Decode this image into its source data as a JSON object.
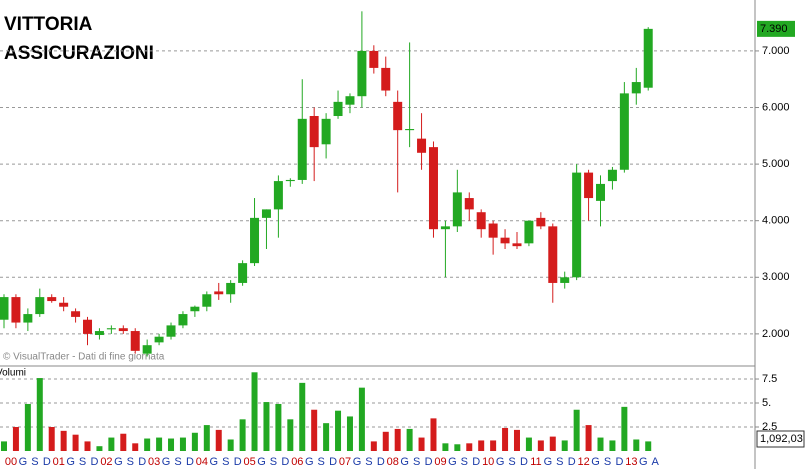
{
  "chart_data": [
    {
      "type": "candlestick",
      "title_lines": [
        "VITTORIA",
        "ASSICURAZIONI"
      ],
      "watermark": "© VisualTrader - Dati di fine giornata",
      "up_color": "#22a822",
      "down_color": "#d41c1c",
      "categories": [
        "00",
        "G",
        "S",
        "D",
        "01",
        "G",
        "S",
        "D",
        "02",
        "G",
        "S",
        "D",
        "03",
        "G",
        "S",
        "D",
        "04",
        "G",
        "S",
        "D",
        "05",
        "G",
        "S",
        "D",
        "06",
        "G",
        "S",
        "D",
        "07",
        "G",
        "S",
        "D",
        "08",
        "G",
        "S",
        "D",
        "09",
        "G",
        "S",
        "D",
        "10",
        "G",
        "S",
        "D",
        "11",
        "G",
        "S",
        "D",
        "12",
        "G",
        "S",
        "D",
        "13",
        "G",
        "A"
      ],
      "open": [
        2.25,
        2.65,
        2.2,
        2.35,
        2.65,
        2.55,
        2.4,
        2.25,
        1.98,
        2.08,
        2.1,
        2.05,
        1.65,
        1.85,
        1.95,
        2.15,
        2.4,
        2.48,
        2.75,
        2.7,
        2.9,
        3.25,
        4.05,
        4.2,
        4.7,
        4.72,
        5.85,
        5.35,
        5.85,
        6.05,
        6.2,
        7.0,
        6.7,
        6.1,
        5.6,
        5.45,
        5.3,
        3.85,
        3.9,
        4.4,
        4.15,
        3.95,
        3.7,
        3.6,
        3.6,
        4.05,
        3.9,
        2.9,
        3.0,
        4.85,
        4.35,
        4.7,
        4.9,
        6.25,
        6.35
      ],
      "high": [
        2.7,
        2.7,
        2.45,
        2.8,
        2.7,
        2.65,
        2.45,
        2.3,
        2.1,
        2.15,
        2.15,
        2.1,
        1.9,
        2.0,
        2.2,
        2.4,
        2.5,
        2.75,
        2.9,
        2.95,
        3.3,
        4.4,
        4.2,
        4.8,
        4.75,
        6.5,
        6.0,
        5.9,
        6.3,
        6.25,
        7.7,
        7.1,
        6.9,
        6.3,
        7.15,
        5.9,
        5.4,
        4.0,
        4.9,
        4.5,
        4.2,
        4.0,
        3.85,
        3.8,
        4.0,
        4.15,
        3.95,
        3.1,
        5.0,
        4.9,
        4.8,
        4.95,
        6.45,
        6.7,
        7.42
      ],
      "low": [
        2.1,
        2.1,
        2.05,
        2.3,
        2.55,
        2.4,
        2.2,
        1.8,
        1.9,
        2.0,
        2.0,
        1.65,
        1.6,
        1.8,
        1.9,
        2.1,
        2.3,
        2.4,
        2.6,
        2.55,
        2.85,
        3.2,
        3.5,
        3.7,
        4.6,
        4.65,
        4.7,
        5.1,
        5.8,
        5.9,
        6.0,
        6.6,
        6.2,
        4.5,
        5.3,
        4.9,
        3.7,
        3.0,
        3.8,
        4.0,
        3.7,
        3.4,
        3.5,
        3.5,
        3.55,
        3.85,
        2.55,
        2.8,
        2.95,
        4.0,
        3.9,
        4.55,
        4.85,
        6.05,
        6.3
      ],
      "close": [
        2.65,
        2.2,
        2.35,
        2.65,
        2.58,
        2.48,
        2.3,
        2.0,
        2.05,
        2.1,
        2.05,
        1.7,
        1.8,
        1.95,
        2.15,
        2.35,
        2.48,
        2.7,
        2.7,
        2.9,
        3.25,
        4.05,
        4.2,
        4.7,
        4.72,
        5.8,
        5.3,
        5.8,
        6.1,
        6.2,
        7.0,
        6.7,
        6.3,
        5.6,
        5.62,
        5.2,
        3.85,
        3.9,
        4.5,
        4.2,
        3.85,
        3.7,
        3.6,
        3.55,
        4.0,
        3.9,
        2.9,
        3.0,
        4.85,
        4.4,
        4.65,
        4.9,
        6.25,
        6.45,
        7.39
      ],
      "last_label": "7.390",
      "ylim": [
        1.45,
        7.9
      ],
      "yticks": [
        {
          "value": 2,
          "label": "2.000"
        },
        {
          "value": 3,
          "label": "3.000"
        },
        {
          "value": 4,
          "label": "4.000"
        },
        {
          "value": 5,
          "label": "5.000"
        },
        {
          "value": 6,
          "label": "6.000"
        },
        {
          "value": 7,
          "label": "7.000"
        }
      ],
      "grid": true
    },
    {
      "type": "bar",
      "title": "Volumi",
      "values": [
        1.0,
        2.5,
        4.9,
        7.6,
        2.5,
        2.1,
        1.7,
        1.0,
        0.5,
        1.4,
        1.8,
        0.8,
        1.3,
        1.4,
        1.3,
        1.4,
        1.9,
        2.7,
        2.2,
        1.2,
        3.3,
        8.2,
        5.1,
        4.9,
        3.3,
        7.1,
        4.3,
        2.9,
        4.2,
        3.6,
        6.6,
        1.0,
        2.0,
        2.3,
        2.3,
        1.4,
        3.4,
        0.8,
        0.7,
        0.8,
        1.1,
        1.1,
        2.4,
        2.2,
        1.4,
        1.1,
        1.5,
        1.1,
        4.3,
        2.7,
        1.4,
        1.1,
        4.6,
        1.2,
        1.0
      ],
      "last_label": "1,092,03",
      "ylim": [
        0,
        8.44
      ],
      "yticks": [
        2.5,
        {
          "value": 5,
          "label": "5."
        },
        7.5
      ],
      "grid": true
    }
  ]
}
